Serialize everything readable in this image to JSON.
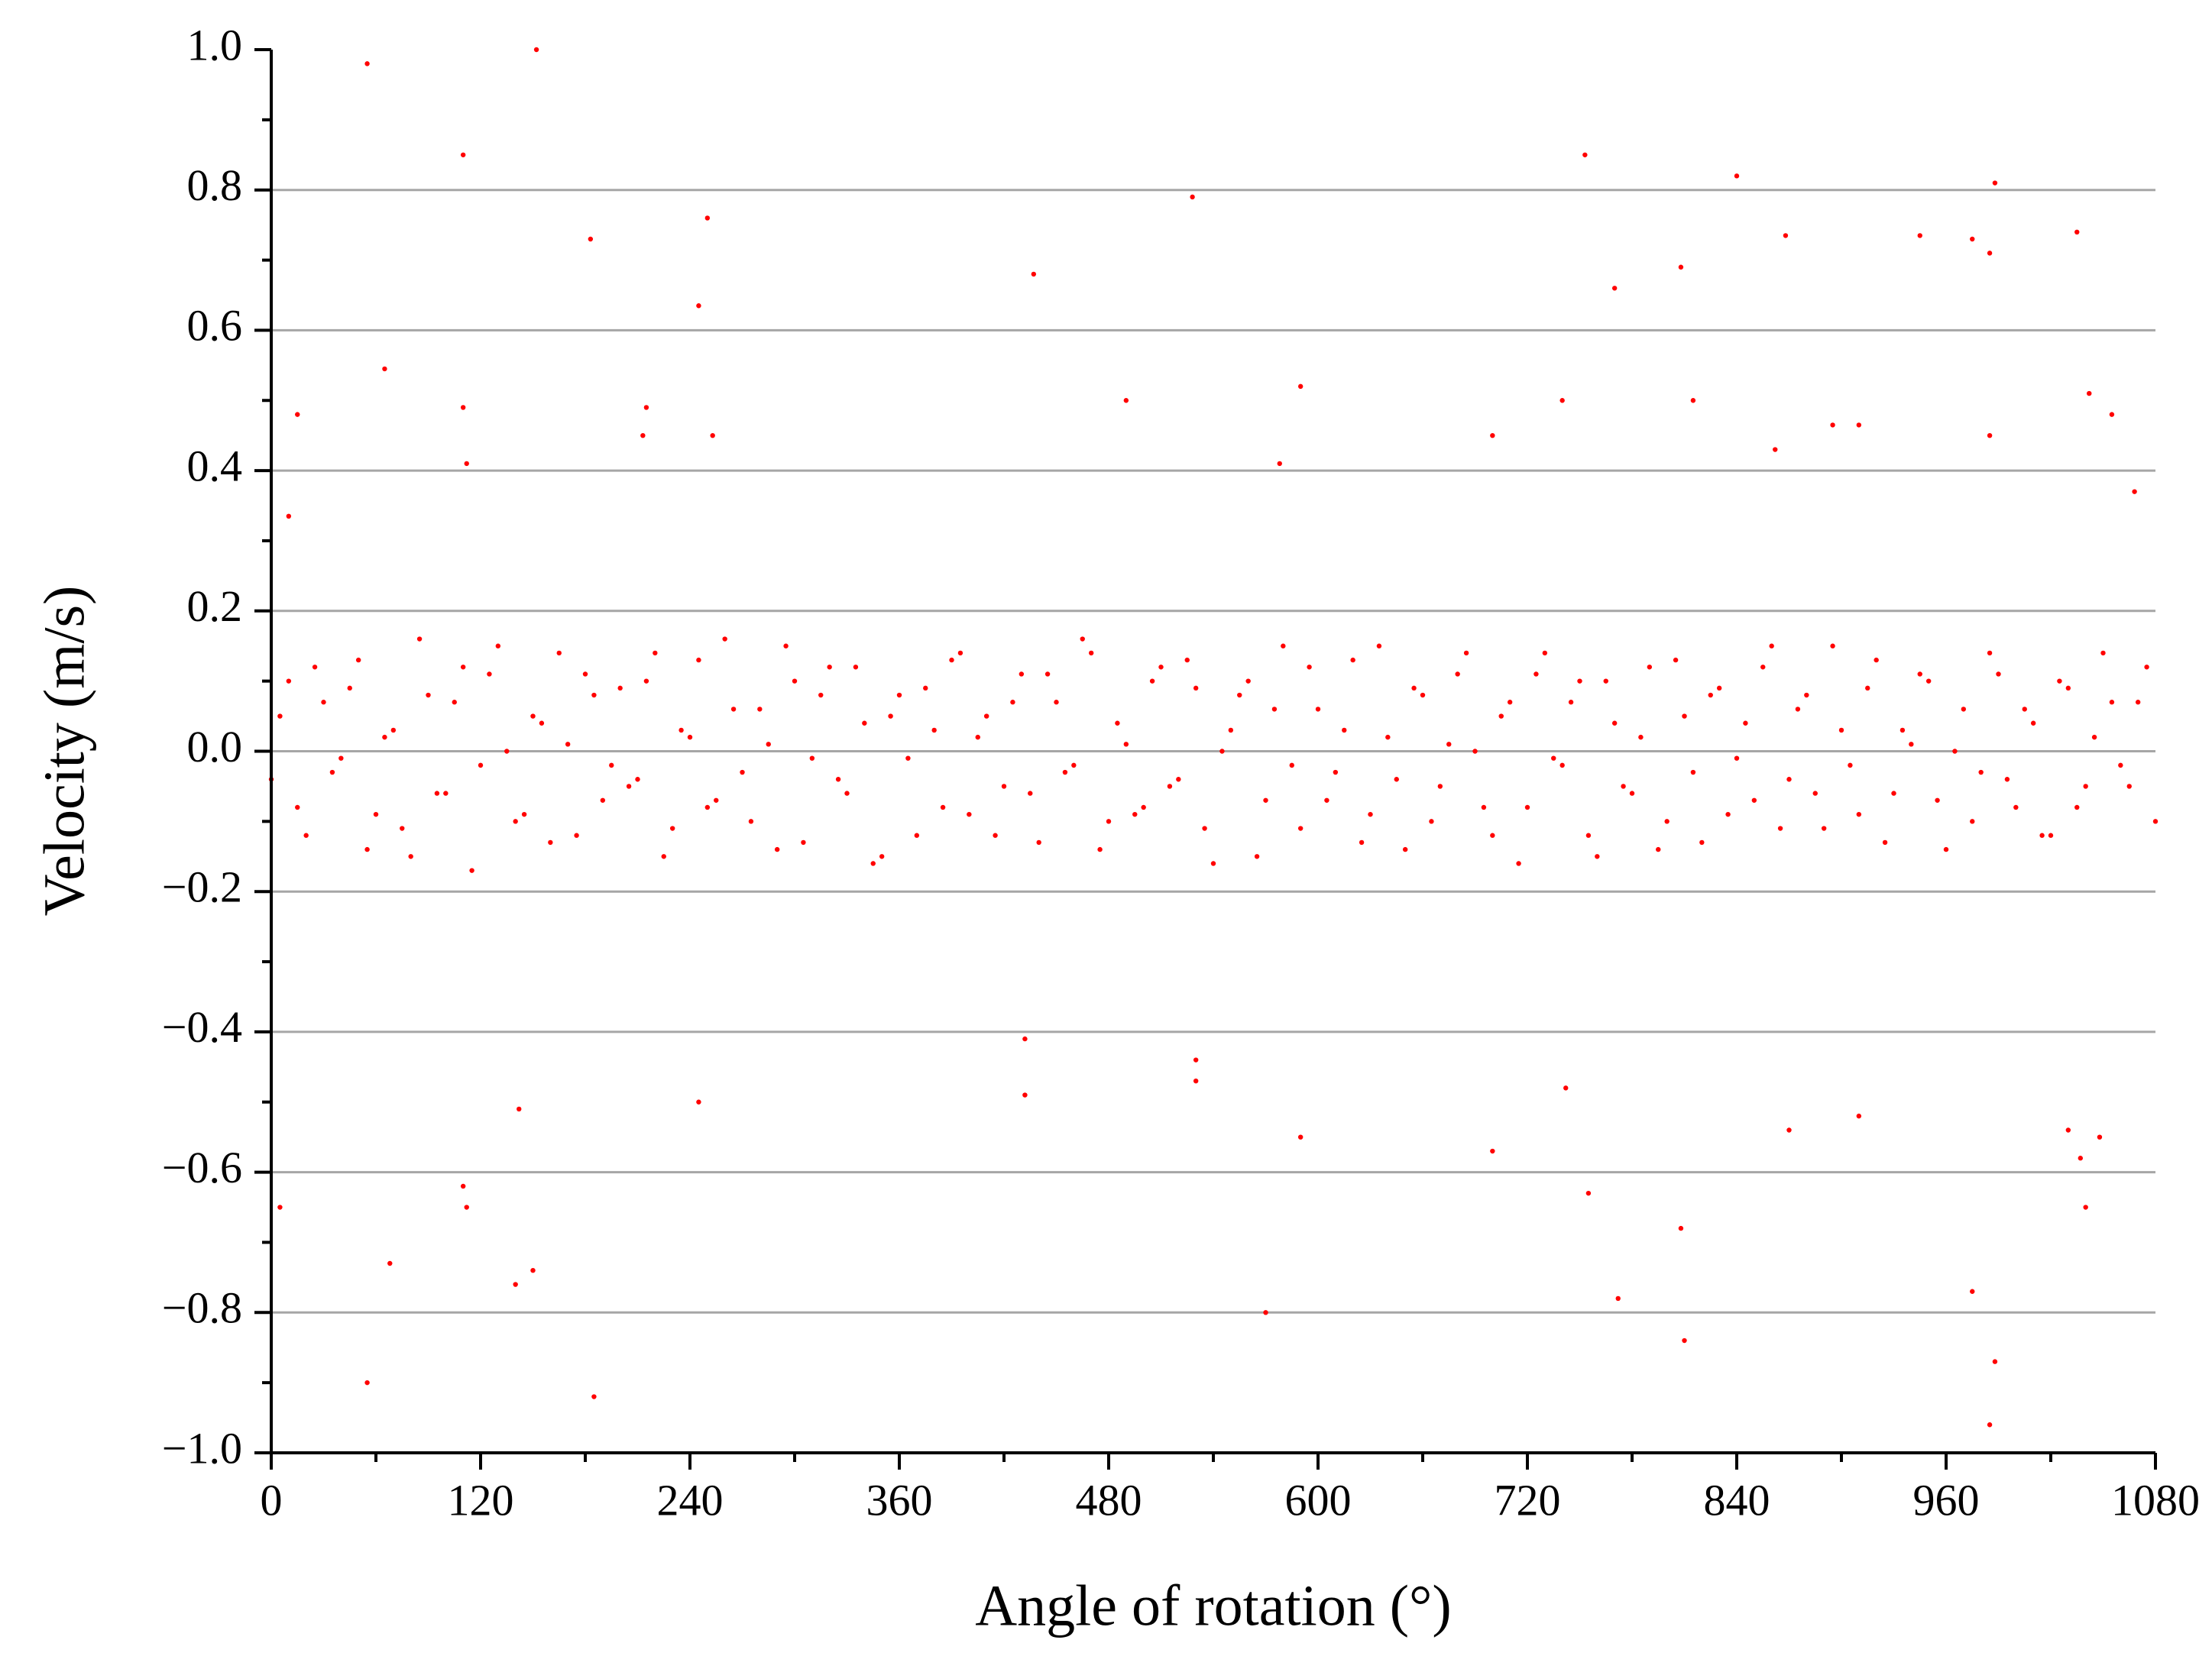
{
  "chart_data": {
    "type": "scatter",
    "x_label": "Angle of rotation (°)",
    "y_label": "Velocity (m/s)",
    "color": "#ff0000",
    "grid": true,
    "xlim": [
      0,
      1080
    ],
    "xticks": [
      0,
      120,
      240,
      360,
      480,
      600,
      720,
      840,
      960,
      1080
    ],
    "ylim": [
      -1,
      1
    ],
    "yticks": [
      {
        "value": -1,
        "label": "−1.0"
      },
      {
        "value": -0.8,
        "label": "−0.8"
      },
      {
        "value": -0.6,
        "label": "−0.6"
      },
      {
        "value": -0.4,
        "label": "−0.4"
      },
      {
        "value": -0.2,
        "label": "−0.2"
      },
      {
        "value": 0,
        "label": "0.0"
      },
      {
        "value": 0.2,
        "label": "0.2"
      },
      {
        "value": 0.4,
        "label": "0.4"
      },
      {
        "value": 0.6,
        "label": "0.6"
      },
      {
        "value": 0.8,
        "label": "0.8"
      },
      {
        "value": 1,
        "label": "1.0"
      }
    ],
    "x": [
      55,
      152,
      110,
      183,
      250,
      245,
      65,
      15,
      110,
      112,
      215,
      213,
      253,
      10,
      5,
      55,
      68,
      110,
      112,
      140,
      150,
      142,
      185,
      245,
      432,
      432,
      437,
      490,
      528,
      530,
      530,
      570,
      578,
      590,
      590,
      700,
      700,
      740,
      742,
      753,
      755,
      770,
      772,
      808,
      808,
      810,
      815,
      840,
      862,
      868,
      870,
      895,
      910,
      910,
      945,
      975,
      975,
      985,
      988,
      985,
      988,
      985,
      1030,
      1035,
      1037,
      1040,
      1042,
      1048,
      1055,
      1068,
      5,
      15,
      25,
      35,
      45,
      55,
      65,
      75,
      85,
      95,
      105,
      115,
      125,
      135,
      145,
      155,
      165,
      175,
      185,
      195,
      205,
      215,
      225,
      235,
      245,
      255,
      265,
      275,
      285,
      295,
      305,
      315,
      325,
      335,
      345,
      355,
      365,
      375,
      385,
      395,
      405,
      415,
      425,
      435,
      445,
      455,
      465,
      475,
      485,
      495,
      505,
      515,
      525,
      535,
      545,
      555,
      565,
      575,
      585,
      595,
      605,
      615,
      625,
      635,
      645,
      655,
      665,
      675,
      685,
      695,
      705,
      715,
      725,
      735,
      745,
      755,
      765,
      775,
      785,
      795,
      805,
      815,
      825,
      835,
      845,
      855,
      865,
      875,
      885,
      895,
      905,
      915,
      925,
      935,
      945,
      955,
      965,
      975,
      985,
      995,
      1005,
      1015,
      1025,
      1035,
      1045,
      1055,
      1065,
      1075,
      0,
      10,
      20,
      30,
      40,
      50,
      60,
      70,
      80,
      90,
      100,
      110,
      120,
      130,
      140,
      150,
      160,
      170,
      180,
      190,
      200,
      210,
      220,
      230,
      240,
      250,
      260,
      270,
      280,
      290,
      300,
      310,
      320,
      330,
      340,
      350,
      360,
      370,
      380,
      390,
      400,
      410,
      420,
      430,
      440,
      450,
      460,
      470,
      480,
      490,
      500,
      510,
      520,
      530,
      540,
      550,
      560,
      570,
      580,
      590,
      600,
      610,
      620,
      630,
      640,
      650,
      660,
      670,
      680,
      690,
      700,
      710,
      720,
      730,
      740,
      750,
      760,
      770,
      780,
      790,
      800,
      810,
      820,
      830,
      840,
      850,
      860,
      870,
      880,
      890,
      900,
      910,
      920,
      930,
      940,
      950,
      960,
      970,
      980,
      990,
      1000,
      1010,
      1020,
      1030,
      1040,
      1050,
      1060,
      1070,
      1080
    ],
    "values": [
      0.98,
      1.0,
      0.85,
      0.73,
      0.76,
      0.635,
      0.545,
      0.48,
      0.49,
      0.41,
      0.49,
      0.45,
      0.45,
      0.335,
      -0.65,
      -0.9,
      -0.73,
      -0.62,
      -0.65,
      -0.76,
      -0.74,
      -0.51,
      -0.92,
      -0.5,
      -0.41,
      -0.49,
      0.68,
      0.5,
      0.79,
      -0.44,
      -0.47,
      -0.8,
      0.41,
      0.52,
      -0.55,
      0.45,
      -0.57,
      0.5,
      -0.48,
      0.85,
      -0.63,
      0.66,
      -0.78,
      0.69,
      -0.68,
      -0.84,
      0.5,
      0.82,
      0.43,
      0.735,
      -0.54,
      0.465,
      0.465,
      -0.52,
      0.735,
      0.73,
      -0.77,
      0.71,
      0.81,
      -0.96,
      -0.87,
      0.45,
      -0.54,
      0.74,
      -0.58,
      -0.65,
      0.51,
      -0.55,
      0.48,
      0.37,
      0.05,
      -0.08,
      0.12,
      -0.03,
      0.09,
      -0.14,
      0.02,
      -0.11,
      0.16,
      -0.06,
      0.07,
      -0.17,
      0.11,
      0.0,
      -0.09,
      0.04,
      0.14,
      -0.12,
      0.08,
      -0.02,
      -0.05,
      0.1,
      -0.15,
      0.03,
      0.13,
      -0.07,
      0.06,
      -0.1,
      0.01,
      0.15,
      -0.13,
      0.08,
      -0.04,
      0.12,
      -0.16,
      0.05,
      -0.01,
      0.09,
      -0.08,
      0.14,
      0.02,
      -0.12,
      0.07,
      -0.06,
      0.11,
      -0.03,
      0.16,
      -0.14,
      0.04,
      -0.09,
      0.1,
      -0.05,
      0.13,
      -0.11,
      0.0,
      0.08,
      -0.15,
      0.06,
      -0.02,
      0.12,
      -0.07,
      0.03,
      -0.13,
      0.15,
      -0.04,
      0.09,
      -0.1,
      0.01,
      0.14,
      -0.08,
      0.05,
      -0.16,
      0.11,
      -0.01,
      0.07,
      -0.12,
      0.1,
      -0.05,
      0.02,
      -0.14,
      0.13,
      -0.03,
      0.08,
      -0.09,
      0.04,
      0.12,
      -0.11,
      0.06,
      -0.06,
      0.15,
      -0.02,
      0.09,
      -0.13,
      0.03,
      0.11,
      -0.07,
      0.0,
      -0.1,
      0.14,
      -0.04,
      0.06,
      -0.12,
      0.1,
      -0.08,
      0.02,
      0.07,
      -0.05,
      0.12,
      -0.04,
      0.1,
      -0.12,
      0.07,
      -0.01,
      0.13,
      -0.09,
      0.03,
      -0.15,
      0.08,
      -0.06,
      0.12,
      -0.02,
      0.15,
      -0.1,
      0.05,
      -0.13,
      0.01,
      0.11,
      -0.07,
      0.09,
      -0.04,
      0.14,
      -0.11,
      0.02,
      -0.08,
      0.16,
      -0.03,
      0.06,
      -0.14,
      0.1,
      -0.01,
      0.12,
      -0.06,
      0.04,
      -0.15,
      0.08,
      -0.12,
      0.03,
      0.13,
      -0.09,
      0.05,
      -0.05,
      0.11,
      -0.13,
      0.07,
      -0.02,
      0.14,
      -0.1,
      0.01,
      -0.08,
      0.12,
      -0.04,
      0.09,
      -0.16,
      0.03,
      0.1,
      -0.07,
      0.15,
      -0.11,
      0.06,
      -0.03,
      0.13,
      -0.09,
      0.02,
      -0.14,
      0.08,
      -0.05,
      0.11,
      0.0,
      -0.12,
      0.07,
      -0.08,
      0.14,
      -0.02,
      0.1,
      -0.15,
      0.04,
      -0.06,
      0.12,
      -0.1,
      0.05,
      -0.13,
      0.09,
      -0.01,
      -0.07,
      0.15,
      -0.04,
      0.08,
      -0.11,
      0.03,
      -0.09,
      0.13,
      -0.06,
      0.01,
      0.1,
      -0.14,
      0.06,
      -0.03,
      0.11,
      -0.08,
      0.04,
      -0.12,
      0.09,
      -0.05,
      0.14,
      -0.02,
      0.07,
      -0.1
    ]
  }
}
